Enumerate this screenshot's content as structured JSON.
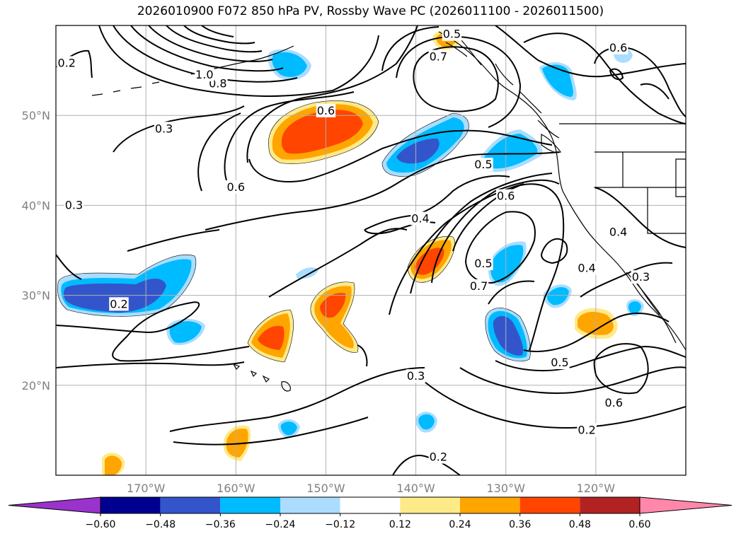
{
  "title": "2026010900 F072 850 hPa PV, Rossby Wave PC (2026011100 - 2026011500)",
  "map": {
    "lon_range": [
      -180,
      -110
    ],
    "lat_range": [
      10,
      60
    ],
    "lat_gridlines": [
      {
        "value": 50,
        "label": "50°N"
      },
      {
        "value": 40,
        "label": "40°N"
      },
      {
        "value": 30,
        "label": "30°N"
      },
      {
        "value": 20,
        "label": "20°N"
      }
    ],
    "lon_gridlines": [
      {
        "value": -170,
        "label": "170°W"
      },
      {
        "value": -160,
        "label": "160°W"
      },
      {
        "value": -150,
        "label": "150°W"
      },
      {
        "value": -140,
        "label": "140°W"
      },
      {
        "value": -130,
        "label": "130°W"
      },
      {
        "value": -120,
        "label": "120°W"
      }
    ],
    "contour_labels": [
      {
        "text": "0.2",
        "lon": -173,
        "lat": 29
      },
      {
        "text": "0.2",
        "lon": -137.5,
        "lat": 12
      },
      {
        "text": "0.2",
        "lon": -121,
        "lat": 15
      },
      {
        "text": "0.2",
        "lon": -178.8,
        "lat": 55.8
      },
      {
        "text": "0.3",
        "lon": -140,
        "lat": 21
      },
      {
        "text": "0.3",
        "lon": -178,
        "lat": 40
      },
      {
        "text": "0.3",
        "lon": -168,
        "lat": 48.5
      },
      {
        "text": "0.3",
        "lon": -115,
        "lat": 32
      },
      {
        "text": "0.4",
        "lon": -139.5,
        "lat": 38.5
      },
      {
        "text": "0.4",
        "lon": -121,
        "lat": 33
      },
      {
        "text": "0.4",
        "lon": -117.5,
        "lat": 37
      },
      {
        "text": "0.5",
        "lon": -136,
        "lat": 59
      },
      {
        "text": "0.5",
        "lon": -132.5,
        "lat": 44.5
      },
      {
        "text": "0.5",
        "lon": -132.5,
        "lat": 33.5
      },
      {
        "text": "0.5",
        "lon": -124,
        "lat": 22.5
      },
      {
        "text": "0.6",
        "lon": -150,
        "lat": 50.5
      },
      {
        "text": "0.6",
        "lon": -160,
        "lat": 42
      },
      {
        "text": "0.6",
        "lon": -130,
        "lat": 41
      },
      {
        "text": "0.6",
        "lon": -118,
        "lat": 18
      },
      {
        "text": "0.6",
        "lon": -117.5,
        "lat": 57.5
      },
      {
        "text": "0.7",
        "lon": -137.5,
        "lat": 56.5
      },
      {
        "text": "0.7",
        "lon": -133,
        "lat": 31
      },
      {
        "text": "0.8",
        "lon": -162,
        "lat": 53.5
      },
      {
        "text": "1.0",
        "lon": -163.5,
        "lat": 54.5
      }
    ]
  },
  "colorbar": {
    "ticks": [
      "−0.60",
      "−0.48",
      "−0.36",
      "−0.24",
      "−0.12",
      "0.12",
      "0.24",
      "0.36",
      "0.48",
      "0.60"
    ],
    "colors": [
      "#9933cc",
      "#000090",
      "#3355cc",
      "#00bbff",
      "#aaddff",
      "#ffffff",
      "#ffea88",
      "#ffa500",
      "#ff4500",
      "#b22222",
      "#ff88aa"
    ]
  }
}
